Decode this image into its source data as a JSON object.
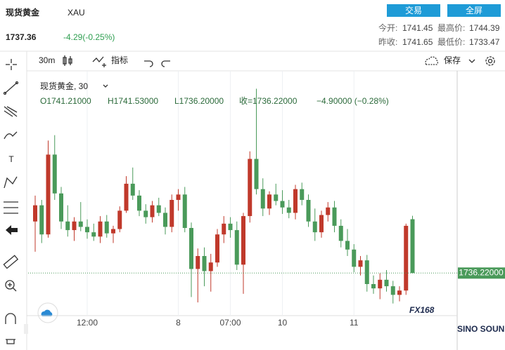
{
  "header": {
    "name": "现货黄金",
    "symbol": "XAU",
    "price": "1737.36",
    "change": "-4.29(-0.25%)",
    "buttons": [
      "交易",
      "全屏"
    ],
    "stats": [
      {
        "label": "今开:",
        "value": "1741.45"
      },
      {
        "label": "最高价:",
        "value": "1744.39"
      },
      {
        "label": "昨收:",
        "value": "1741.65"
      },
      {
        "label": "最低价:",
        "value": "1733.47"
      }
    ]
  },
  "toolbar": {
    "interval": "30m",
    "indicators": "指标",
    "save": "保存"
  },
  "logo": {
    "text": "FX168",
    "sub": "SINO SOUND"
  },
  "chart_data": {
    "type": "candlestick",
    "title": "现货黄金, 30",
    "legend": [
      "O1741.21000",
      "H1741.53000",
      "L1736.20000",
      "收=1736.22000",
      "−4.90000 (−0.28%)"
    ],
    "categories": [
      null,
      null,
      null,
      null,
      null,
      null,
      null,
      null,
      "12:00",
      null,
      null,
      null,
      null,
      null,
      null,
      null,
      null,
      null,
      null,
      null,
      null,
      null,
      "8",
      null,
      null,
      null,
      null,
      null,
      null,
      null,
      "07:00",
      null,
      null,
      null,
      null,
      null,
      null,
      null,
      "10",
      null,
      null,
      null,
      null,
      null,
      null,
      null,
      null,
      null,
      null,
      "11",
      null,
      null,
      null,
      null,
      null,
      null,
      null,
      null,
      null
    ],
    "values": [
      [
        1741.0,
        1743.4,
        1738.2,
        1742.5
      ],
      [
        1742.5,
        1743.0,
        1739.0,
        1739.8
      ],
      [
        1739.8,
        1748.5,
        1739.5,
        1747.2
      ],
      [
        1747.2,
        1749.0,
        1743.0,
        1743.6
      ],
      [
        1743.6,
        1744.2,
        1740.3,
        1741.0
      ],
      [
        1741.0,
        1742.5,
        1739.6,
        1740.2
      ],
      [
        1740.2,
        1741.4,
        1739.2,
        1741.0
      ],
      [
        1741.0,
        1742.8,
        1740.1,
        1740.5
      ],
      [
        1740.5,
        1741.2,
        1739.4,
        1740.0
      ],
      [
        1740.0,
        1740.8,
        1739.2,
        1739.6
      ],
      [
        1739.6,
        1741.5,
        1739.0,
        1741.0
      ],
      [
        1741.0,
        1741.6,
        1739.5,
        1739.9
      ],
      [
        1739.9,
        1740.6,
        1739.0,
        1740.3
      ],
      [
        1740.3,
        1742.4,
        1740.0,
        1742.0
      ],
      [
        1742.0,
        1745.2,
        1741.8,
        1744.5
      ],
      [
        1744.5,
        1746.0,
        1743.0,
        1743.4
      ],
      [
        1743.4,
        1743.9,
        1741.5,
        1742.0
      ],
      [
        1742.0,
        1742.6,
        1740.8,
        1741.4
      ],
      [
        1741.4,
        1742.9,
        1740.9,
        1742.5
      ],
      [
        1742.5,
        1743.2,
        1741.5,
        1741.8
      ],
      [
        1741.8,
        1742.3,
        1739.8,
        1740.5
      ],
      [
        1740.5,
        1743.5,
        1740.0,
        1743.0
      ],
      [
        1743.0,
        1744.0,
        1742.0,
        1743.5
      ],
      [
        1743.5,
        1744.2,
        1740.0,
        1740.4
      ],
      [
        1740.4,
        1740.9,
        1734.0,
        1736.6
      ],
      [
        1736.6,
        1738.5,
        1733.5,
        1737.8
      ],
      [
        1737.8,
        1738.6,
        1735.0,
        1736.4
      ],
      [
        1736.4,
        1738.0,
        1734.5,
        1737.2
      ],
      [
        1737.2,
        1740.3,
        1736.8,
        1739.8
      ],
      [
        1739.8,
        1741.5,
        1739.0,
        1740.8
      ],
      [
        1740.8,
        1741.4,
        1739.5,
        1740.2
      ],
      [
        1740.2,
        1741.0,
        1736.5,
        1737.0
      ],
      [
        1737.0,
        1741.8,
        1734.3,
        1741.5
      ],
      [
        1741.5,
        1747.5,
        1740.9,
        1746.8
      ],
      [
        1746.8,
        1753.3,
        1743.5,
        1744.0
      ],
      [
        1744.0,
        1745.0,
        1741.5,
        1742.2
      ],
      [
        1742.2,
        1743.8,
        1741.6,
        1743.5
      ],
      [
        1743.5,
        1744.5,
        1742.5,
        1742.9
      ],
      [
        1742.9,
        1743.9,
        1741.7,
        1742.3
      ],
      [
        1742.3,
        1743.0,
        1741.3,
        1741.8
      ],
      [
        1741.8,
        1744.4,
        1741.2,
        1744.0
      ],
      [
        1744.0,
        1744.6,
        1742.5,
        1743.0
      ],
      [
        1743.0,
        1743.5,
        1740.5,
        1741.0
      ],
      [
        1741.0,
        1742.2,
        1739.2,
        1740.0
      ],
      [
        1740.0,
        1742.0,
        1739.5,
        1741.6
      ],
      [
        1741.6,
        1742.8,
        1741.0,
        1742.3
      ],
      [
        1742.3,
        1742.9,
        1740.0,
        1740.6
      ],
      [
        1740.6,
        1741.2,
        1738.6,
        1739.2
      ],
      [
        1739.2,
        1740.3,
        1737.8,
        1738.4
      ],
      [
        1738.4,
        1738.9,
        1736.3,
        1736.8
      ],
      [
        1736.8,
        1737.8,
        1736.0,
        1737.4
      ],
      [
        1737.4,
        1737.9,
        1734.5,
        1735.2
      ],
      [
        1735.2,
        1736.0,
        1734.3,
        1734.8
      ],
      [
        1734.8,
        1736.2,
        1733.8,
        1735.6
      ],
      [
        1735.6,
        1736.5,
        1734.5,
        1735.0
      ],
      [
        1735.0,
        1735.5,
        1733.4,
        1734.2
      ],
      [
        1734.2,
        1735.0,
        1733.6,
        1734.6
      ],
      [
        1734.6,
        1740.8,
        1734.2,
        1740.6
      ],
      [
        1741.21,
        1741.53,
        1736.2,
        1736.22
      ]
    ],
    "up_color": "#c0392b",
    "down_color": "#4a9a5a",
    "ylim": [
      1732.6,
      1754.7
    ],
    "last_price": {
      "value": 1736.22,
      "label": "1736.22000"
    },
    "grid": true
  }
}
